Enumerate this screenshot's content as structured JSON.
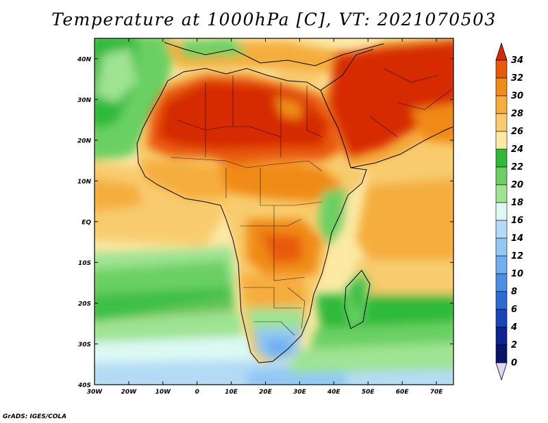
{
  "title": "Temperature at 1000hPa [C], VT: 2021070503",
  "credit": "GrADS: IGES/COLA",
  "map": {
    "lat_ticks": [
      "40N",
      "30N",
      "20N",
      "10N",
      "EQ",
      "10S",
      "20S",
      "30S",
      "40S"
    ],
    "lon_ticks": [
      "30W",
      "20W",
      "10W",
      "0",
      "10E",
      "20E",
      "30E",
      "40E",
      "50E",
      "60E",
      "70E"
    ],
    "extent": {
      "lon_min": -30,
      "lon_max": 75,
      "lat_min": -40,
      "lat_max": 45
    }
  },
  "colorbar": {
    "labels": [
      "34",
      "32",
      "30",
      "28",
      "26",
      "24",
      "22",
      "20",
      "18",
      "16",
      "14",
      "12",
      "10",
      "8",
      "6",
      "4",
      "2",
      "0"
    ],
    "colors": [
      "#d62a05",
      "#e85a0a",
      "#f08a18",
      "#f5ad3c",
      "#f8cc6e",
      "#fbe9a4",
      "#2fba3a",
      "#6bd063",
      "#9fe393",
      "#dcf9f4",
      "#b4dbf5",
      "#92c8f4",
      "#6eb0f0",
      "#4a8ee6",
      "#2c6ad6",
      "#1846b6",
      "#0c2490",
      "#0a1466"
    ],
    "under_color": "#ddd8f4"
  }
}
